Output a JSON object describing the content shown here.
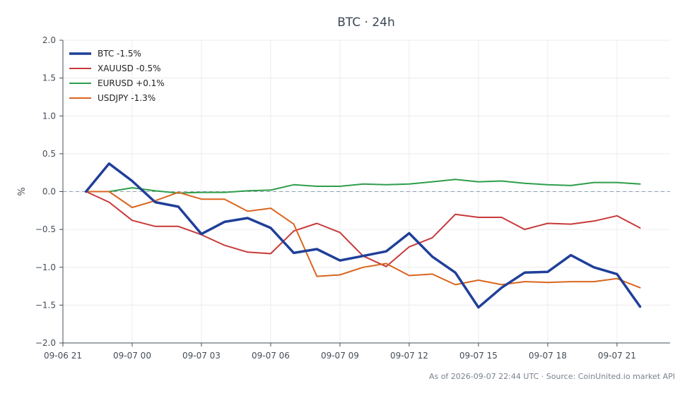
{
  "chart_data": {
    "type": "line",
    "title": "BTC · 24h",
    "xlabel": "",
    "ylabel": "%",
    "ylim": [
      -2.0,
      2.0
    ],
    "yticks": [
      2.0,
      1.5,
      1.0,
      0.5,
      0.0,
      -0.5,
      -1.0,
      -1.5,
      -2.0
    ],
    "ytick_labels": [
      "2.0",
      "1.5",
      "1.0",
      "0.5",
      "0.0",
      "−0.5",
      "−1.0",
      "−1.5",
      "−2.0"
    ],
    "xlim": [
      -1.0,
      25.3
    ],
    "xticks": [
      -1,
      2,
      5,
      8,
      11,
      14,
      17,
      20,
      23
    ],
    "xtick_labels": [
      "09-06 21",
      "09-07 00",
      "09-07 03",
      "09-07 06",
      "09-07 09",
      "09-07 12",
      "09-07 15",
      "09-07 18",
      "09-07 21"
    ],
    "x": [
      0,
      1,
      2,
      3,
      4,
      5,
      6,
      7,
      8,
      9,
      10,
      11,
      12,
      13,
      14,
      15,
      16,
      17,
      18,
      19,
      20,
      21,
      22,
      23,
      24
    ],
    "grid": true,
    "zero_line": true,
    "legend_position": "top-left",
    "series": [
      {
        "name": "BTC -1.5%",
        "color": "#1f3f99",
        "width": 3.5,
        "values": [
          0.0,
          0.37,
          0.14,
          -0.14,
          -0.2,
          -0.56,
          -0.4,
          -0.35,
          -0.48,
          -0.81,
          -0.76,
          -0.91,
          -0.85,
          -0.79,
          -0.55,
          -0.86,
          -1.07,
          -1.53,
          -1.27,
          -1.07,
          -1.06,
          -0.84,
          -1.0,
          -1.09,
          -1.52
        ]
      },
      {
        "name": "XAUUSD -0.5%",
        "color": "#c8393a",
        "width": 2,
        "values": [
          0.0,
          -0.14,
          -0.38,
          -0.46,
          -0.46,
          -0.57,
          -0.71,
          -0.8,
          -0.82,
          -0.52,
          -0.42,
          -0.54,
          -0.85,
          -0.99,
          -0.73,
          -0.61,
          -0.3,
          -0.34,
          -0.34,
          -0.5,
          -0.42,
          -0.43,
          -0.39,
          -0.32,
          -0.48
        ]
      },
      {
        "name": "EURUSD +0.1%",
        "color": "#2e9e4a",
        "width": 2,
        "values": [
          0.0,
          0.0,
          0.05,
          0.01,
          -0.02,
          -0.01,
          -0.01,
          0.01,
          0.02,
          0.09,
          0.07,
          0.07,
          0.1,
          0.09,
          0.1,
          0.13,
          0.16,
          0.13,
          0.14,
          0.11,
          0.09,
          0.08,
          0.12,
          0.12,
          0.1
        ]
      },
      {
        "name": "USDJPY -1.3%",
        "color": "#d9651f",
        "width": 2,
        "values": [
          0.0,
          0.0,
          -0.21,
          -0.12,
          -0.01,
          -0.1,
          -0.1,
          -0.26,
          -0.22,
          -0.43,
          -1.12,
          -1.1,
          -1.0,
          -0.95,
          -1.11,
          -1.09,
          -1.23,
          -1.17,
          -1.23,
          -1.19,
          -1.2,
          -1.19,
          -1.19,
          -1.15,
          -1.27
        ]
      }
    ],
    "footer": "As of 2026-09-07 22:44 UTC · Source: CoinUnited.io market API"
  }
}
